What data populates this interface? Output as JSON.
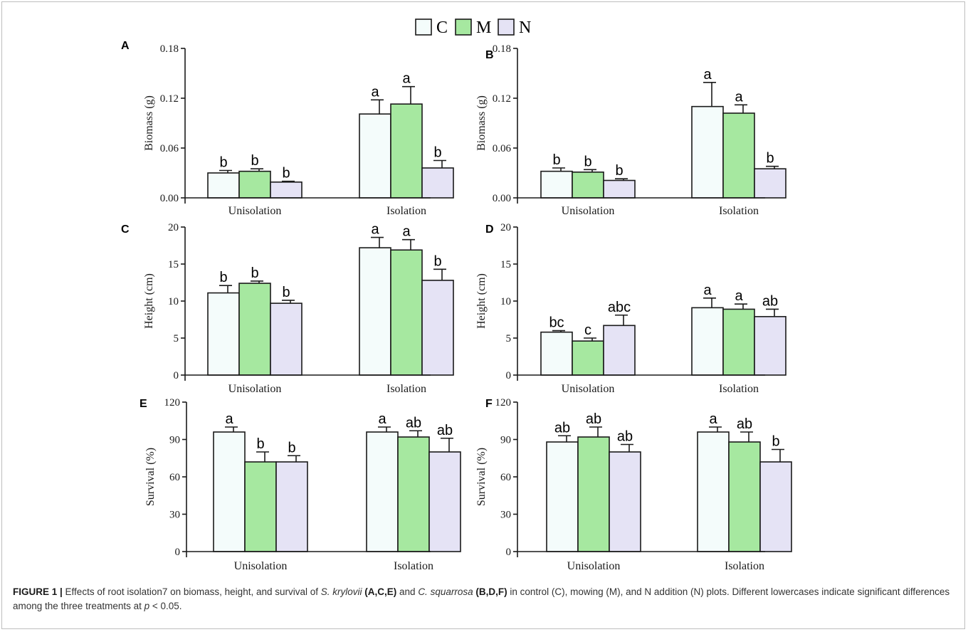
{
  "legend": [
    {
      "key": "C",
      "color": "#f4fcfb"
    },
    {
      "key": "M",
      "color": "#a6e8a0"
    },
    {
      "key": "N",
      "color": "#e5e3f5"
    }
  ],
  "chart_data": [
    {
      "panel": "A",
      "type": "bar",
      "categories": [
        "Unisolation",
        "Isolation"
      ],
      "series": [
        {
          "name": "C",
          "values": [
            0.03,
            0.101
          ],
          "errors": [
            0.003,
            0.017
          ],
          "letters": [
            "b",
            "a"
          ]
        },
        {
          "name": "M",
          "values": [
            0.032,
            0.113
          ],
          "errors": [
            0.003,
            0.021
          ],
          "letters": [
            "b",
            "a"
          ]
        },
        {
          "name": "N",
          "values": [
            0.019,
            0.036
          ],
          "errors": [
            0.001,
            0.009
          ],
          "letters": [
            "b",
            "b"
          ]
        }
      ],
      "ylabel": "Biomass (g)",
      "ylim": [
        0,
        0.18
      ],
      "yticks": [
        "0.00",
        "0.06",
        "0.12",
        "0.18"
      ]
    },
    {
      "panel": "B",
      "type": "bar",
      "categories": [
        "Unisolation",
        "Isolation"
      ],
      "series": [
        {
          "name": "C",
          "values": [
            0.032,
            0.11
          ],
          "errors": [
            0.004,
            0.029
          ],
          "letters": [
            "b",
            "a"
          ]
        },
        {
          "name": "M",
          "values": [
            0.031,
            0.102
          ],
          "errors": [
            0.003,
            0.01
          ],
          "letters": [
            "b",
            "a"
          ]
        },
        {
          "name": "N",
          "values": [
            0.021,
            0.035
          ],
          "errors": [
            0.002,
            0.003
          ],
          "letters": [
            "b",
            "b"
          ]
        }
      ],
      "ylabel": "Biomass (g)",
      "ylim": [
        0,
        0.18
      ],
      "yticks": [
        "0.00",
        "0.06",
        "0.12",
        "0.18"
      ]
    },
    {
      "panel": "C",
      "type": "bar",
      "categories": [
        "Unisolation",
        "Isolation"
      ],
      "series": [
        {
          "name": "C",
          "values": [
            11.1,
            17.2
          ],
          "errors": [
            1.0,
            1.4
          ],
          "letters": [
            "b",
            "a"
          ]
        },
        {
          "name": "M",
          "values": [
            12.4,
            16.9
          ],
          "errors": [
            0.3,
            1.4
          ],
          "letters": [
            "b",
            "a"
          ]
        },
        {
          "name": "N",
          "values": [
            9.7,
            12.8
          ],
          "errors": [
            0.4,
            1.5
          ],
          "letters": [
            "b",
            "b"
          ]
        }
      ],
      "ylabel": "Height (cm)",
      "ylim": [
        0,
        20
      ],
      "yticks": [
        "0",
        "5",
        "10",
        "15",
        "20"
      ]
    },
    {
      "panel": "D",
      "type": "bar",
      "categories": [
        "Unisolation",
        "Isolation"
      ],
      "series": [
        {
          "name": "C",
          "values": [
            5.8,
            9.1
          ],
          "errors": [
            0.2,
            1.3
          ],
          "letters": [
            "bc",
            "a"
          ]
        },
        {
          "name": "M",
          "values": [
            4.6,
            8.9
          ],
          "errors": [
            0.4,
            0.7
          ],
          "letters": [
            "c",
            "a"
          ]
        },
        {
          "name": "N",
          "values": [
            6.7,
            7.9
          ],
          "errors": [
            1.4,
            1.0
          ],
          "letters": [
            "abc",
            "ab"
          ]
        }
      ],
      "ylabel": "Height (cm)",
      "ylim": [
        0,
        20
      ],
      "yticks": [
        "0",
        "5",
        "10",
        "15",
        "20"
      ]
    },
    {
      "panel": "E",
      "type": "bar",
      "categories": [
        "Unisolation",
        "Isolation"
      ],
      "series": [
        {
          "name": "C",
          "values": [
            96,
            96
          ],
          "errors": [
            4,
            4
          ],
          "letters": [
            "a",
            "a"
          ]
        },
        {
          "name": "M",
          "values": [
            72,
            92
          ],
          "errors": [
            8,
            5
          ],
          "letters": [
            "b",
            "ab"
          ]
        },
        {
          "name": "N",
          "values": [
            72,
            80
          ],
          "errors": [
            5,
            11
          ],
          "letters": [
            "b",
            "ab"
          ]
        }
      ],
      "ylabel": "Survival (%)",
      "ylim": [
        0,
        120
      ],
      "yticks": [
        "0",
        "30",
        "60",
        "90",
        "120"
      ]
    },
    {
      "panel": "F",
      "type": "bar",
      "categories": [
        "Unisolation",
        "Isolation"
      ],
      "series": [
        {
          "name": "C",
          "values": [
            88,
            96
          ],
          "errors": [
            5,
            4
          ],
          "letters": [
            "ab",
            "a"
          ]
        },
        {
          "name": "M",
          "values": [
            92,
            88
          ],
          "errors": [
            8,
            8
          ],
          "letters": [
            "ab",
            "ab"
          ]
        },
        {
          "name": "N",
          "values": [
            80,
            72
          ],
          "errors": [
            6,
            10
          ],
          "letters": [
            "ab",
            "b"
          ]
        }
      ],
      "ylabel": "Survival (%)",
      "ylim": [
        0,
        120
      ],
      "yticks": [
        "0",
        "30",
        "60",
        "90",
        "120"
      ]
    }
  ],
  "caption": {
    "label": "FIGURE 1 |",
    "t1": " Effects of root isolation7 on biomass, height, and survival of ",
    "sp1": "S. krylovii",
    "p1": "(A,C,E)",
    "t2": " and ",
    "sp2": "C. squarrosa",
    "p2": "(B,D,F)",
    "t3": " in control (C), mowing (M), and N addition (N) plots. Different lowercases indicate significant differences among the three treatments at ",
    "p_sym": "p",
    "t4": " < 0.05."
  }
}
